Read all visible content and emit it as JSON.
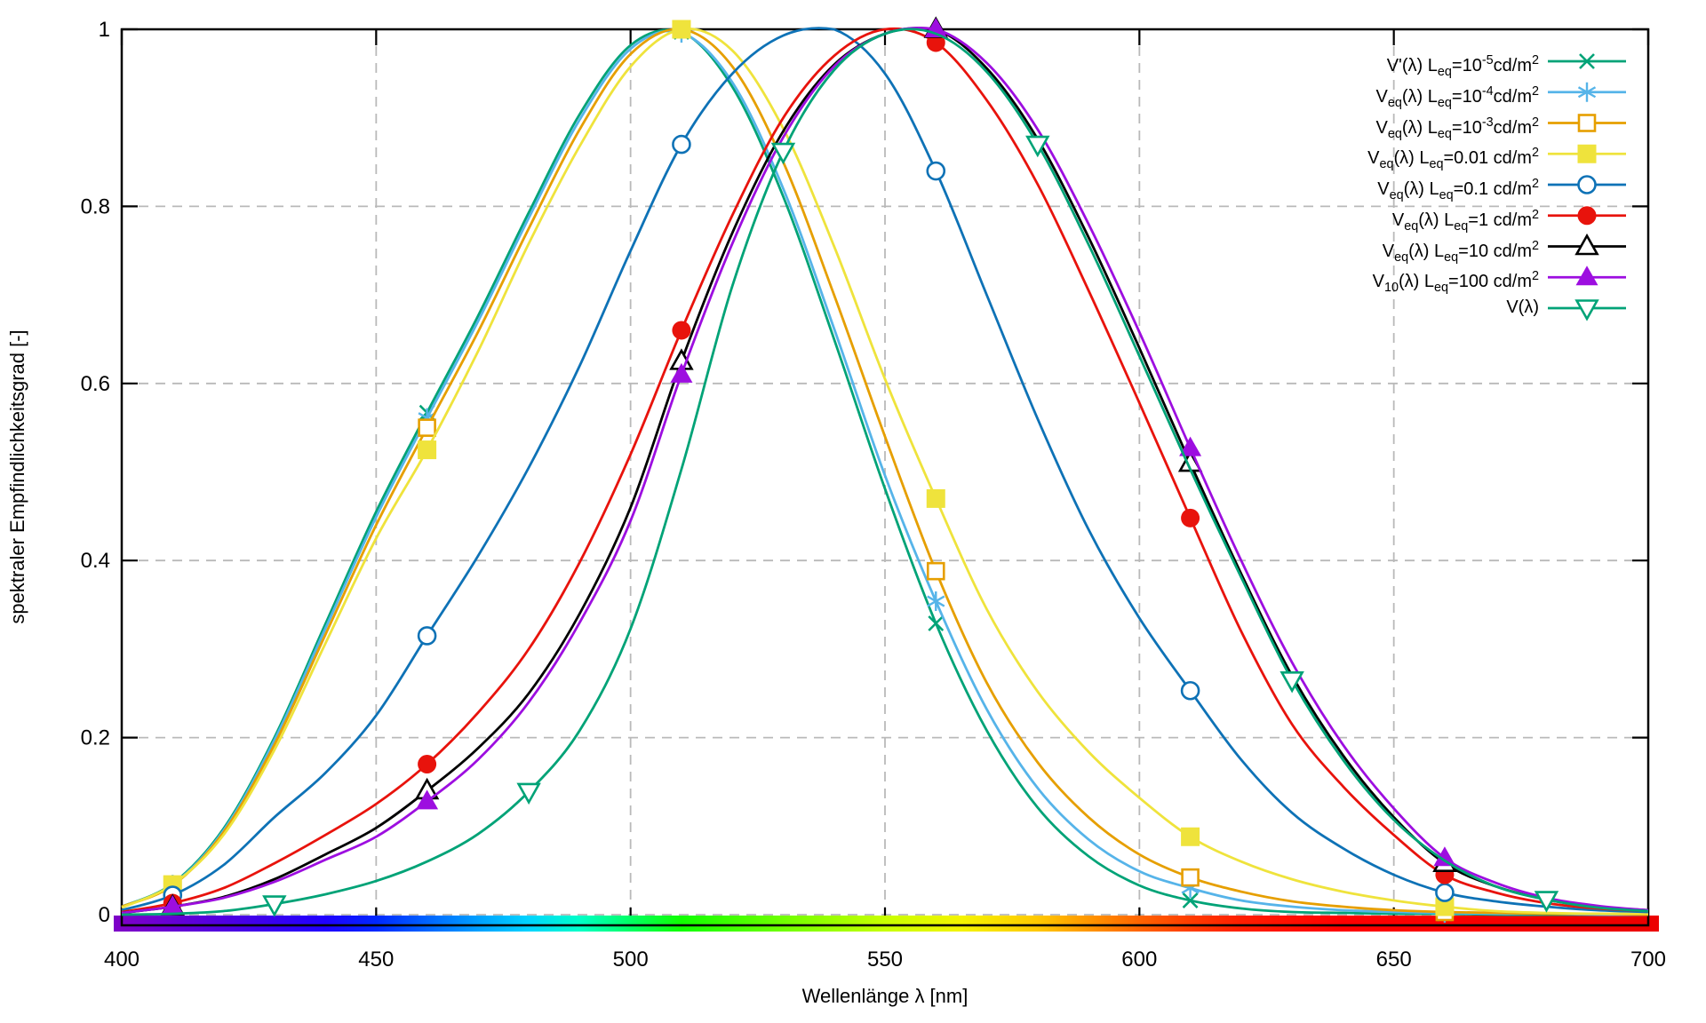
{
  "chart_data": {
    "type": "line",
    "title": "",
    "xlabel": "Wellenlänge λ [nm]",
    "ylabel": "spektraler Empfindlichkeitsgrad [-]",
    "xlim": [
      400,
      700
    ],
    "ylim": [
      0,
      1
    ],
    "grid": true,
    "legend_position": "top-right",
    "x_ticks": [
      400,
      450,
      500,
      550,
      600,
      650,
      700
    ],
    "x_tick_labels": [
      "400",
      "450",
      "500",
      "550",
      "600",
      "650",
      "700"
    ],
    "y_ticks": [
      0,
      0.2,
      0.4,
      0.6,
      0.8,
      1
    ],
    "y_tick_labels": [
      "0",
      "0.2",
      "0.4",
      "0.6",
      "0.8",
      "1"
    ],
    "grid_color": "#b9b9b9",
    "x": [
      400,
      410,
      420,
      430,
      440,
      450,
      460,
      470,
      480,
      490,
      500,
      510,
      520,
      530,
      540,
      550,
      560,
      570,
      580,
      590,
      600,
      610,
      620,
      630,
      640,
      650,
      660,
      670,
      680,
      690,
      700
    ],
    "series": [
      {
        "name": "V'(λ) L_eq=10^-5 cd/m^2",
        "label_parts": [
          {
            "t": "V'(λ) L"
          },
          {
            "sub": "eq"
          },
          {
            "t": "=10"
          },
          {
            "sup": "-5"
          },
          {
            "t": "cd/m"
          },
          {
            "sup": "2"
          }
        ],
        "color": "#00a377",
        "marker": "cross",
        "marker_x": [
          410,
          460,
          510,
          560,
          610,
          660
        ],
        "values": [
          0.009,
          0.035,
          0.097,
          0.2,
          0.328,
          0.455,
          0.567,
          0.676,
          0.793,
          0.904,
          0.982,
          0.997,
          0.935,
          0.811,
          0.65,
          0.481,
          0.329,
          0.208,
          0.121,
          0.066,
          0.033,
          0.016,
          0.007,
          0.003,
          0.002,
          0.001,
          0.001,
          0.0,
          0.0,
          0.0,
          0.0
        ]
      },
      {
        "name": "V_eq(λ) L_eq=10^-4 cd/m^2",
        "label_parts": [
          {
            "t": "V"
          },
          {
            "sub": "eq"
          },
          {
            "t": "(λ) L"
          },
          {
            "sub": "eq"
          },
          {
            "t": "=10"
          },
          {
            "sup": "-4"
          },
          {
            "t": "cd/m"
          },
          {
            "sup": "2"
          }
        ],
        "color": "#56b4e9",
        "marker": "asterisk",
        "marker_x": [
          410,
          460,
          510,
          560,
          610,
          660
        ],
        "values": [
          0.009,
          0.034,
          0.095,
          0.197,
          0.323,
          0.449,
          0.561,
          0.67,
          0.787,
          0.898,
          0.978,
          0.996,
          0.94,
          0.82,
          0.662,
          0.496,
          0.354,
          0.232,
          0.143,
          0.085,
          0.049,
          0.03,
          0.016,
          0.009,
          0.005,
          0.003,
          0.002,
          0.001,
          0.001,
          0.0,
          0.0
        ]
      },
      {
        "name": "V_eq(λ) L_eq=10^-3 cd/m^2",
        "label_parts": [
          {
            "t": "V"
          },
          {
            "sub": "eq"
          },
          {
            "t": "(λ) L"
          },
          {
            "sub": "eq"
          },
          {
            "t": "=10"
          },
          {
            "sup": "-3"
          },
          {
            "t": "cd/m"
          },
          {
            "sup": "2"
          }
        ],
        "color": "#e69f00",
        "marker": "square-open",
        "marker_x": [
          410,
          460,
          510,
          560,
          610,
          660
        ],
        "values": [
          0.009,
          0.033,
          0.093,
          0.192,
          0.316,
          0.44,
          0.55,
          0.658,
          0.775,
          0.887,
          0.972,
          1.0,
          0.958,
          0.85,
          0.7,
          0.54,
          0.388,
          0.262,
          0.172,
          0.11,
          0.068,
          0.042,
          0.026,
          0.015,
          0.009,
          0.005,
          0.003,
          0.002,
          0.001,
          0.001,
          0.0
        ]
      },
      {
        "name": "V_eq(λ) L_eq=0.01 cd/m^2",
        "label_parts": [
          {
            "t": "V"
          },
          {
            "sub": "eq"
          },
          {
            "t": "(λ) L"
          },
          {
            "sub": "eq"
          },
          {
            "t": "=0.01 cd/m"
          },
          {
            "sup": "2"
          }
        ],
        "color": "#efe33c",
        "marker": "square-filled",
        "marker_x": [
          410,
          460,
          510,
          560,
          610,
          660
        ],
        "values": [
          0.008,
          0.034,
          0.09,
          0.186,
          0.306,
          0.425,
          0.525,
          0.636,
          0.758,
          0.868,
          0.958,
          1.0,
          0.976,
          0.888,
          0.755,
          0.605,
          0.47,
          0.345,
          0.252,
          0.184,
          0.132,
          0.088,
          0.06,
          0.04,
          0.026,
          0.016,
          0.009,
          0.004,
          0.002,
          0.001,
          0.001
        ]
      },
      {
        "name": "V_eq(λ) L_eq=0.1 cd/m^2",
        "label_parts": [
          {
            "t": "V"
          },
          {
            "sub": "eq"
          },
          {
            "t": "(λ) L"
          },
          {
            "sub": "eq"
          },
          {
            "t": "=0.1 cd/m"
          },
          {
            "sup": "2"
          }
        ],
        "color": "#0e72b6",
        "marker": "circle-open",
        "marker_x": [
          410,
          460,
          510,
          560,
          610,
          660
        ],
        "values": [
          0.005,
          0.022,
          0.056,
          0.11,
          0.16,
          0.225,
          0.315,
          0.405,
          0.505,
          0.62,
          0.75,
          0.87,
          0.95,
          0.993,
          1.0,
          0.95,
          0.84,
          0.7,
          0.56,
          0.435,
          0.335,
          0.253,
          0.175,
          0.115,
          0.075,
          0.045,
          0.025,
          0.015,
          0.009,
          0.005,
          0.003
        ]
      },
      {
        "name": "V_eq(λ) L_eq=1 cd/m^2",
        "label_parts": [
          {
            "t": "V"
          },
          {
            "sub": "eq"
          },
          {
            "t": "(λ) L"
          },
          {
            "sub": "eq"
          },
          {
            "t": "=1 cd/m"
          },
          {
            "sup": "2"
          }
        ],
        "color": "#e8130c",
        "marker": "circle-filled",
        "marker_x": [
          410,
          460,
          510,
          560,
          610,
          660
        ],
        "values": [
          0.003,
          0.013,
          0.03,
          0.058,
          0.09,
          0.125,
          0.17,
          0.228,
          0.3,
          0.398,
          0.52,
          0.66,
          0.79,
          0.9,
          0.97,
          1.0,
          0.985,
          0.92,
          0.825,
          0.705,
          0.578,
          0.448,
          0.32,
          0.215,
          0.145,
          0.09,
          0.045,
          0.025,
          0.013,
          0.007,
          0.004
        ]
      },
      {
        "name": "V_eq(λ) L_eq=10 cd/m^2",
        "label_parts": [
          {
            "t": "V"
          },
          {
            "sub": "eq"
          },
          {
            "t": "(λ) L"
          },
          {
            "sub": "eq"
          },
          {
            "t": "=10 cd/m"
          },
          {
            "sup": "2"
          }
        ],
        "color": "#000000",
        "marker": "triangle-open",
        "marker_x": [
          410,
          460,
          510,
          560,
          610,
          660
        ],
        "values": [
          0.002,
          0.009,
          0.02,
          0.04,
          0.068,
          0.098,
          0.14,
          0.188,
          0.25,
          0.34,
          0.46,
          0.625,
          0.77,
          0.885,
          0.96,
          0.995,
          1.0,
          0.956,
          0.876,
          0.765,
          0.64,
          0.51,
          0.385,
          0.27,
          0.18,
          0.11,
          0.058,
          0.032,
          0.017,
          0.009,
          0.005
        ]
      },
      {
        "name": "V_10(λ) L_eq=100 cd/m^2",
        "label_parts": [
          {
            "t": "V"
          },
          {
            "sub": "10"
          },
          {
            "t": "(λ) L"
          },
          {
            "sub": "eq"
          },
          {
            "t": "=100 cd/m"
          },
          {
            "sup": "2"
          }
        ],
        "color": "#9d0ee0",
        "marker": "triangle-filled",
        "marker_x": [
          410,
          460,
          510,
          560,
          610,
          660
        ],
        "values": [
          0.002,
          0.009,
          0.019,
          0.037,
          0.062,
          0.088,
          0.128,
          0.175,
          0.24,
          0.33,
          0.445,
          0.61,
          0.758,
          0.878,
          0.958,
          0.995,
          1.0,
          0.962,
          0.887,
          0.78,
          0.658,
          0.527,
          0.4,
          0.285,
          0.192,
          0.12,
          0.064,
          0.036,
          0.019,
          0.01,
          0.005
        ]
      },
      {
        "name": "V(λ)",
        "label_parts": [
          {
            "t": "V(λ)"
          }
        ],
        "color": "#00a377",
        "marker": "triangle-down-open",
        "marker_x": [
          430,
          480,
          530,
          580,
          630,
          680
        ],
        "values": [
          0.0,
          0.001,
          0.004,
          0.012,
          0.023,
          0.038,
          0.06,
          0.091,
          0.139,
          0.208,
          0.323,
          0.503,
          0.71,
          0.862,
          0.954,
          0.995,
          0.995,
          0.952,
          0.87,
          0.757,
          0.631,
          0.503,
          0.381,
          0.265,
          0.175,
          0.107,
          0.061,
          0.032,
          0.017,
          0.008,
          0.004
        ]
      }
    ],
    "spectrum_bar": {
      "stops": [
        {
          "wavelength": 400,
          "color": "#7d00c8"
        },
        {
          "wavelength": 420,
          "color": "#5000e0"
        },
        {
          "wavelength": 440,
          "color": "#2000ff"
        },
        {
          "wavelength": 450,
          "color": "#0028ff"
        },
        {
          "wavelength": 460,
          "color": "#0064ff"
        },
        {
          "wavelength": 470,
          "color": "#00a0ff"
        },
        {
          "wavelength": 480,
          "color": "#00d4ff"
        },
        {
          "wavelength": 490,
          "color": "#00ffc8"
        },
        {
          "wavelength": 500,
          "color": "#00ff64"
        },
        {
          "wavelength": 510,
          "color": "#10ff00"
        },
        {
          "wavelength": 530,
          "color": "#70ff00"
        },
        {
          "wavelength": 550,
          "color": "#c8ff00"
        },
        {
          "wavelength": 565,
          "color": "#f4f400"
        },
        {
          "wavelength": 580,
          "color": "#ffc800"
        },
        {
          "wavelength": 590,
          "color": "#ff9600"
        },
        {
          "wavelength": 600,
          "color": "#ff6400"
        },
        {
          "wavelength": 610,
          "color": "#ff3c00"
        },
        {
          "wavelength": 620,
          "color": "#ff1e00"
        },
        {
          "wavelength": 640,
          "color": "#ff0000"
        },
        {
          "wavelength": 700,
          "color": "#ec0000"
        }
      ]
    }
  }
}
